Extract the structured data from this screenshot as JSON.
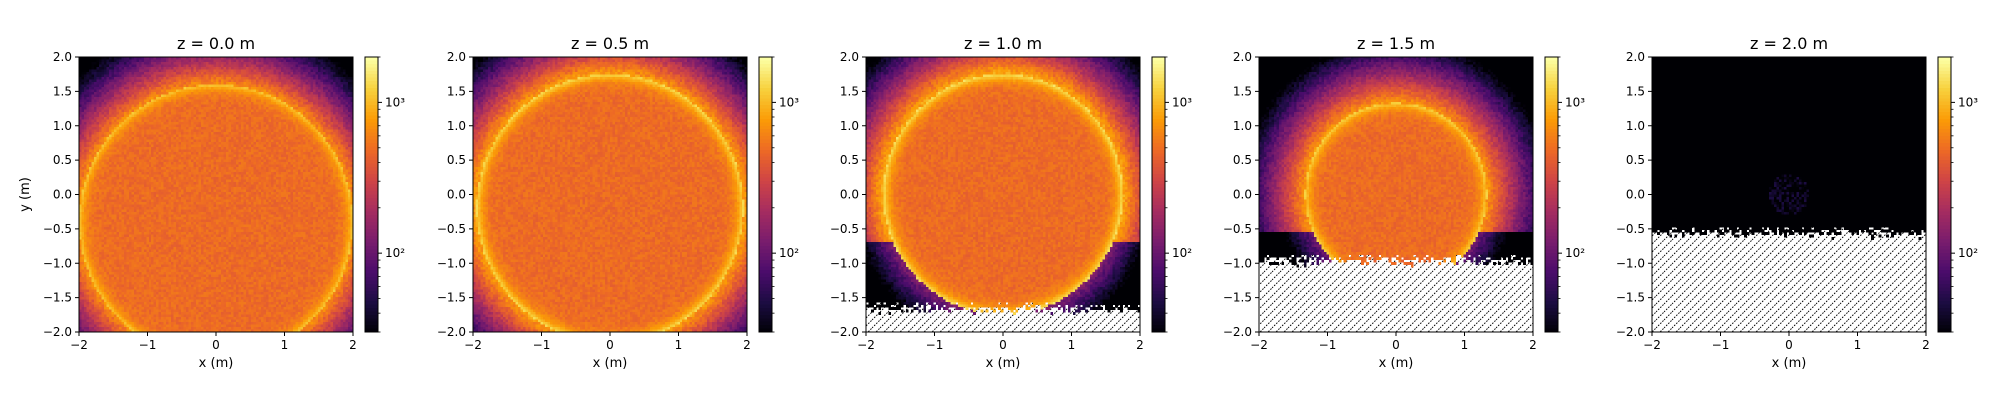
{
  "colors": {
    "colormap": [
      "#000004",
      "#1b0c41",
      "#4a0c6b",
      "#781c6d",
      "#a52c60",
      "#cf4446",
      "#ed6925",
      "#fb9b06",
      "#f7d13d",
      "#fcffa4"
    ],
    "background": "#ffffff",
    "hatch": "#000000"
  },
  "chart_data": [
    {
      "type": "heatmap",
      "title": "z = 0.0 m",
      "xlabel": "x (m)",
      "ylabel": "y (m)",
      "xlim": [
        -2,
        2
      ],
      "ylim": [
        -2,
        2
      ],
      "x_ticks": [
        "−2",
        "−1",
        "0",
        "1",
        "2"
      ],
      "y_ticks": [
        "−2.0",
        "−1.5",
        "−1.0",
        "−0.5",
        "0.0",
        "0.5",
        "1.0",
        "1.5",
        "2.0"
      ],
      "colorbar": {
        "scale": "log",
        "ticks": [
          "10²",
          "10³"
        ]
      },
      "disk": {
        "center_y": -0.4,
        "radius": 2.0,
        "interior_counts": 500,
        "rim_counts": 1200
      },
      "empty_region_y_below": null
    },
    {
      "type": "heatmap",
      "title": "z = 0.5 m",
      "xlabel": "x (m)",
      "ylabel": "",
      "xlim": [
        -2,
        2
      ],
      "ylim": [
        -2,
        2
      ],
      "x_ticks": [
        "−2",
        "−1",
        "0",
        "1",
        "2"
      ],
      "y_ticks": [
        "−2.0",
        "−1.5",
        "−1.0",
        "−0.5",
        "0.0",
        "0.5",
        "1.0",
        "1.5",
        "2.0"
      ],
      "colorbar": {
        "scale": "log",
        "ticks": [
          "10²",
          "10³"
        ]
      },
      "disk": {
        "center_y": -0.2,
        "radius": 1.95,
        "interior_counts": 500,
        "rim_counts": 1400
      },
      "empty_region_y_below": null
    },
    {
      "type": "heatmap",
      "title": "z = 1.0 m",
      "xlabel": "x (m)",
      "ylabel": "",
      "xlim": [
        -2,
        2
      ],
      "ylim": [
        -2,
        2
      ],
      "x_ticks": [
        "−2",
        "−1",
        "0",
        "1",
        "2"
      ],
      "y_ticks": [
        "−2.0",
        "−1.5",
        "−1.0",
        "−0.5",
        "0.0",
        "0.5",
        "1.0",
        "1.5",
        "2.0"
      ],
      "colorbar": {
        "scale": "log",
        "ticks": [
          "10²",
          "10³"
        ]
      },
      "disk": {
        "center_y": 0.0,
        "radius": 1.75,
        "interior_counts": 500,
        "rim_counts": 1500
      },
      "empty_region_y_below": -1.65
    },
    {
      "type": "heatmap",
      "title": "z = 1.5 m",
      "xlabel": "x (m)",
      "ylabel": "",
      "xlim": [
        -2,
        2
      ],
      "ylim": [
        -2,
        2
      ],
      "x_ticks": [
        "−2",
        "−1",
        "0",
        "1",
        "2"
      ],
      "y_ticks": [
        "−2.0",
        "−1.5",
        "−1.0",
        "−0.5",
        "0.0",
        "0.5",
        "1.0",
        "1.5",
        "2.0"
      ],
      "colorbar": {
        "scale": "log",
        "ticks": [
          "10²",
          "10³"
        ]
      },
      "disk": {
        "center_y": 0.0,
        "radius": 1.33,
        "interior_counts": 500,
        "rim_counts": 1300
      },
      "empty_region_y_below": -0.95
    },
    {
      "type": "heatmap",
      "title": "z = 2.0 m",
      "xlabel": "x (m)",
      "ylabel": "",
      "xlim": [
        -2,
        2
      ],
      "ylim": [
        -2,
        2
      ],
      "x_ticks": [
        "−2",
        "−1",
        "0",
        "1",
        "2"
      ],
      "y_ticks": [
        "−2.0",
        "−1.5",
        "−1.0",
        "−0.5",
        "0.0",
        "0.5",
        "1.0",
        "1.5",
        "2.0"
      ],
      "colorbar": {
        "scale": "log",
        "ticks": [
          "10²",
          "10³"
        ]
      },
      "disk": {
        "center_y": 0.0,
        "radius": 0.0,
        "interior_counts": 0,
        "rim_counts": 0
      },
      "faint_spot": {
        "center_x": 0.0,
        "center_y": 0.0,
        "radius": 0.3,
        "counts": 35
      },
      "empty_region_y_below": -0.55
    }
  ]
}
